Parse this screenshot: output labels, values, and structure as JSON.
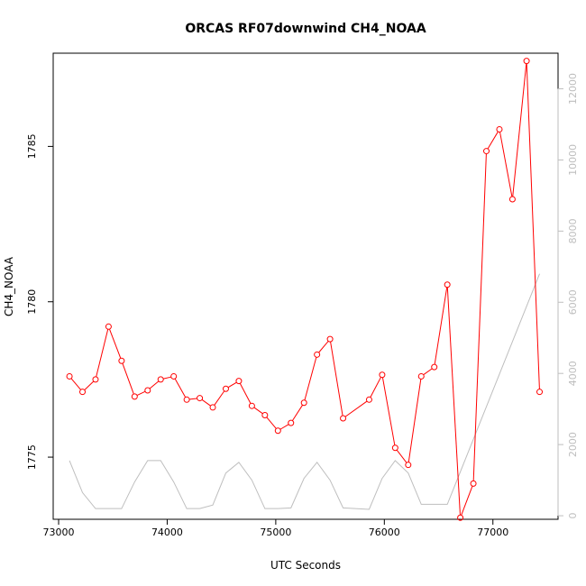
{
  "chart_data": {
    "type": "line",
    "title": "ORCAS RF07downwind CH4_NOAA",
    "xlabel": "UTC Seconds",
    "ylabel": "CH4_NOAA",
    "xlim": [
      72950,
      77600
    ],
    "ylim": [
      1773.0,
      1788.0
    ],
    "y2lim": [
      -100,
      13000
    ],
    "x_ticks": [
      73000,
      74000,
      75000,
      76000,
      77000
    ],
    "y_ticks": [
      1775,
      1780,
      1785
    ],
    "y2_ticks": [
      0,
      2000,
      4000,
      6000,
      8000,
      10000,
      12000
    ],
    "legend": "none",
    "grid": false,
    "series": [
      {
        "axis": "left",
        "color": "#ff0000",
        "style": "line+circle",
        "x": [
          73100,
          73220,
          73340,
          73460,
          73580,
          73700,
          73820,
          73940,
          74060,
          74180,
          74300,
          74420,
          74540,
          74660,
          74780,
          74900,
          75020,
          75140,
          75260,
          75380,
          75500,
          75620,
          75860,
          75980,
          76100,
          76220,
          76340,
          76460,
          76580,
          76700,
          76820,
          76940,
          77060,
          77180,
          77310,
          77430
        ],
        "values": [
          1777.6,
          1777.1,
          1777.5,
          1779.2,
          1778.1,
          1776.95,
          1777.15,
          1777.5,
          1777.6,
          1776.85,
          1776.9,
          1776.6,
          1777.2,
          1777.45,
          1776.65,
          1776.35,
          1775.85,
          1776.1,
          1776.75,
          1778.3,
          1778.8,
          1776.25,
          1776.85,
          1777.65,
          1775.3,
          1774.75,
          1777.6,
          1777.9,
          1780.55,
          1773.05,
          1774.15,
          1784.85,
          1785.55,
          1783.3,
          1787.75,
          1777.1
        ]
      },
      {
        "axis": "right",
        "color": "#bebebe",
        "style": "line",
        "x": [
          73100,
          73220,
          73340,
          73460,
          73580,
          73700,
          73820,
          73940,
          74060,
          74180,
          74300,
          74420,
          74540,
          74660,
          74780,
          74900,
          75020,
          75140,
          75260,
          75380,
          75500,
          75620,
          75860,
          75980,
          76100,
          76220,
          76340,
          76460,
          76580,
          77430
        ],
        "values": [
          1550,
          650,
          200,
          200,
          200,
          950,
          1550,
          1550,
          950,
          200,
          200,
          300,
          1200,
          1500,
          1000,
          200,
          200,
          220,
          1050,
          1500,
          1000,
          220,
          180,
          1050,
          1550,
          1200,
          320,
          320,
          320,
          6800
        ]
      }
    ]
  }
}
